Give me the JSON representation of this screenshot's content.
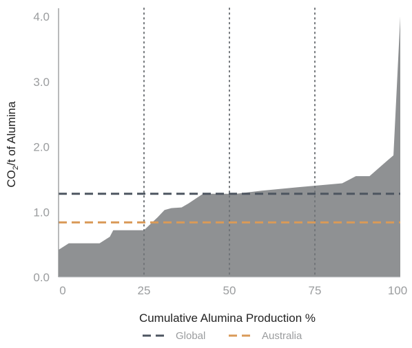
{
  "chart_data": {
    "type": "area",
    "title": "",
    "xlabel": "Cumulative Alumina Production %",
    "ylabel_main": "CO",
    "ylabel_sub": "2",
    "ylabel_rest": "/t of Alumina",
    "xlim": [
      0,
      100
    ],
    "ylim": [
      0,
      4.0
    ],
    "x_ticks": [
      {
        "value": 0,
        "label": "0"
      },
      {
        "value": 25,
        "label": "25"
      },
      {
        "value": 50,
        "label": "50"
      },
      {
        "value": 75,
        "label": "75"
      },
      {
        "value": 100,
        "label": "100"
      }
    ],
    "y_ticks": [
      {
        "value": 0,
        "label": "0.0"
      },
      {
        "value": 1,
        "label": "1.0"
      },
      {
        "value": 2,
        "label": "2.0"
      },
      {
        "value": 3,
        "label": "3.0"
      },
      {
        "value": 4,
        "label": "4.0"
      }
    ],
    "grid": false,
    "vertical_reference_lines_x": [
      25,
      50,
      75
    ],
    "area_series": {
      "color": "#8f9193",
      "x": [
        0,
        3,
        5,
        7,
        9,
        11,
        12,
        15,
        16,
        18,
        20,
        22,
        24,
        25,
        27,
        29,
        31,
        33,
        36,
        38,
        40,
        42,
        44,
        46,
        50,
        52,
        60,
        70,
        83,
        87,
        91,
        96,
        98,
        100
      ],
      "y": [
        0.42,
        0.52,
        0.52,
        0.52,
        0.52,
        0.52,
        0.52,
        0.62,
        0.72,
        0.72,
        0.72,
        0.72,
        0.72,
        0.72,
        0.82,
        0.92,
        1.03,
        1.06,
        1.07,
        1.13,
        1.2,
        1.27,
        1.28,
        1.28,
        1.28,
        1.28,
        1.33,
        1.38,
        1.44,
        1.55,
        1.55,
        1.78,
        1.87,
        4.0
      ]
    },
    "horizontal_lines": [
      {
        "name": "Global",
        "value": 1.28,
        "color": "#4d5560"
      },
      {
        "name": "Australia",
        "value": 0.84,
        "color": "#d99a58"
      }
    ],
    "legend_placement": "bottom-center"
  }
}
